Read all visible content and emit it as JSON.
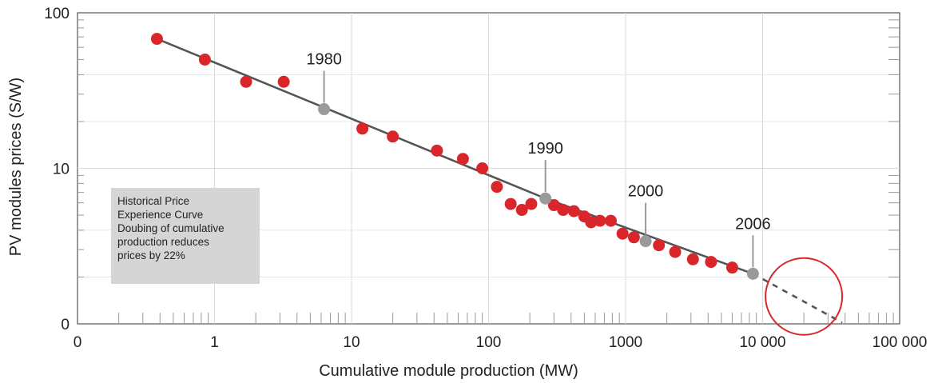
{
  "chart_data": {
    "type": "scatter",
    "title": "",
    "xlabel": "Cumulative module production (MW)",
    "ylabel": "PV modules prices (S/W)",
    "x_scale": "log",
    "y_scale": "log",
    "x_ticks": [
      "0",
      "1",
      "10",
      "100",
      "1000",
      "10 000",
      "100 000"
    ],
    "y_ticks": [
      "0",
      "10",
      "100"
    ],
    "grid": true,
    "series": [
      {
        "points": [
          [
            0.38,
            68
          ],
          [
            0.85,
            50
          ],
          [
            1.7,
            36
          ],
          [
            3.2,
            36
          ],
          [
            12,
            18
          ],
          [
            20,
            16
          ],
          [
            42,
            13
          ],
          [
            65,
            11.5
          ],
          [
            90,
            10
          ],
          [
            115,
            7.6
          ],
          [
            145,
            5.9
          ],
          [
            175,
            5.4
          ],
          [
            205,
            5.9
          ],
          [
            300,
            5.8
          ],
          [
            350,
            5.4
          ],
          [
            420,
            5.3
          ],
          [
            500,
            4.9
          ],
          [
            560,
            4.5
          ],
          [
            650,
            4.6
          ],
          [
            780,
            4.6
          ],
          [
            950,
            3.8
          ],
          [
            1150,
            3.6
          ],
          [
            1750,
            3.2
          ],
          [
            2300,
            2.9
          ],
          [
            3100,
            2.6
          ],
          [
            4200,
            2.5
          ],
          [
            6000,
            2.3
          ]
        ]
      }
    ],
    "trend_line": [
      [
        0.38,
        68
      ],
      [
        260,
        6.4
      ],
      [
        8500,
        2.1
      ]
    ],
    "projection_line": [
      [
        8500,
        2.1
      ],
      [
        38000,
        1.02
      ]
    ],
    "year_markers": [
      {
        "year": "1980",
        "x": 6.3,
        "y": 24
      },
      {
        "year": "1990",
        "x": 260,
        "y": 6.4
      },
      {
        "year": "2000",
        "x": 1400,
        "y": 3.4
      },
      {
        "year": "2006",
        "x": 8500,
        "y": 2.1
      }
    ],
    "highlight_circle": {
      "x": 20000,
      "y": 1.5
    },
    "note": [
      "Historical Price",
      "Experience Curve",
      "Doubing of cumulative",
      "production reduces",
      "prices by 22%"
    ],
    "colors": {
      "points": "#d9262b",
      "markers": "#9a9a9a",
      "line": "#555555",
      "circle": "#d62828",
      "note_bg": "#d5d5d5",
      "grid": "#d9d9d9"
    }
  }
}
